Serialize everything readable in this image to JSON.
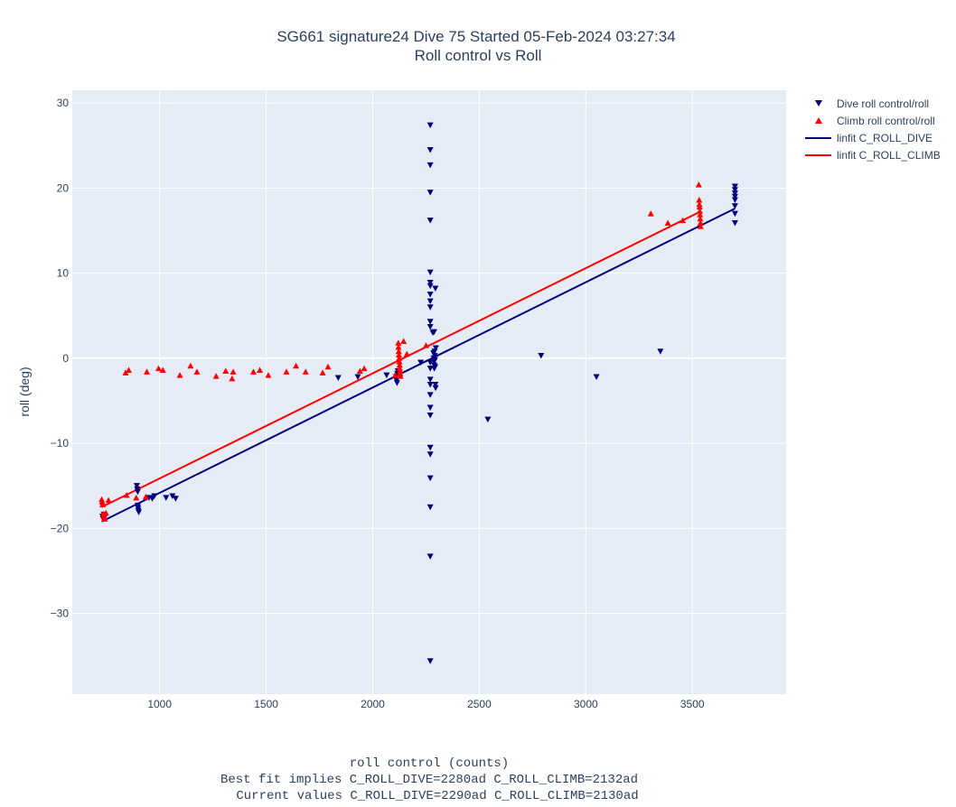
{
  "chart_data": {
    "type": "scatter",
    "title": "SG661 signature24 Dive 75 Started 05-Feb-2024 03:27:34",
    "subtitle": "Roll control vs Roll",
    "xlabel_lines": [
      "roll control (counts)",
      "Best fit implies C_ROLL_DIVE=2280ad C_ROLL_CLIMB=2132ad",
      "Current values C_ROLL_DIVE=2290ad C_ROLL_CLIMB=2130ad"
    ],
    "ylabel": "roll (deg)",
    "xlim": [
      590,
      3940
    ],
    "ylim": [
      -39.5,
      31.5
    ],
    "x_ticks": [
      1000,
      1500,
      2000,
      2500,
      3000,
      3500
    ],
    "y_ticks": [
      30,
      20,
      10,
      0,
      -10,
      -20,
      -30
    ],
    "grid": true,
    "legend_position": "top-right",
    "colors": {
      "dive": "#00007f",
      "climb": "#ff0000",
      "plot_bg": "#e5ecf6",
      "grid": "#ffffff",
      "text": "#2a3f5f"
    },
    "series": [
      {
        "name": "Dive roll control/roll",
        "kind": "markers",
        "marker": "triangle-down",
        "color": "#00007f",
        "points": [
          [
            732,
            -18.6
          ],
          [
            735,
            -18.9
          ],
          [
            738,
            -18.4
          ],
          [
            742,
            -18.7
          ],
          [
            893,
            -15.0
          ],
          [
            895,
            -15.4
          ],
          [
            897,
            -15.7
          ],
          [
            899,
            -17.6
          ],
          [
            900,
            -17.9
          ],
          [
            902,
            -18.1
          ],
          [
            898,
            -17.3
          ],
          [
            950,
            -16.4
          ],
          [
            965,
            -16.5
          ],
          [
            975,
            -16.2
          ],
          [
            1030,
            -16.4
          ],
          [
            1060,
            -16.2
          ],
          [
            1075,
            -16.5
          ],
          [
            1838,
            -2.3
          ],
          [
            1930,
            -2.2
          ],
          [
            2065,
            -2.0
          ],
          [
            2110,
            -2.2
          ],
          [
            2112,
            -2.6
          ],
          [
            2114,
            -2.9
          ],
          [
            2116,
            -1.8
          ],
          [
            2118,
            -1.5
          ],
          [
            2225,
            -0.5
          ],
          [
            2270,
            27.4
          ],
          [
            2270,
            24.5
          ],
          [
            2270,
            22.7
          ],
          [
            2270,
            19.5
          ],
          [
            2270,
            16.2
          ],
          [
            2270,
            10.1
          ],
          [
            2270,
            8.9
          ],
          [
            2270,
            8.5
          ],
          [
            2270,
            7.5
          ],
          [
            2270,
            6.7
          ],
          [
            2270,
            6.0
          ],
          [
            2270,
            4.3
          ],
          [
            2270,
            3.7
          ],
          [
            2270,
            -0.5
          ],
          [
            2270,
            -1.2
          ],
          [
            2270,
            -2.5
          ],
          [
            2270,
            -3.1
          ],
          [
            2270,
            -4.3
          ],
          [
            2270,
            -5.8
          ],
          [
            2270,
            -6.7
          ],
          [
            2270,
            -10.5
          ],
          [
            2270,
            -11.3
          ],
          [
            2270,
            -14.1
          ],
          [
            2270,
            -17.5
          ],
          [
            2270,
            -23.3
          ],
          [
            2270,
            -35.6
          ],
          [
            2282,
            3.0
          ],
          [
            2285,
            0.6
          ],
          [
            2286,
            0.0
          ],
          [
            2287,
            -0.3
          ],
          [
            2288,
            -0.8
          ],
          [
            2289,
            -1.2
          ],
          [
            2290,
            0.8
          ],
          [
            2291,
            0.3
          ],
          [
            2292,
            -0.2
          ],
          [
            2293,
            -1.0
          ],
          [
            2294,
            -3.1
          ],
          [
            2295,
            -3.5
          ],
          [
            2296,
            1.2
          ],
          [
            2294,
            8.2
          ],
          [
            2288,
            3.1
          ],
          [
            2540,
            -7.2
          ],
          [
            2790,
            0.3
          ],
          [
            3050,
            -2.2
          ],
          [
            3350,
            0.8
          ],
          [
            3700,
            20.2
          ],
          [
            3700,
            19.8
          ],
          [
            3700,
            19.4
          ],
          [
            3700,
            19.0
          ],
          [
            3700,
            18.6
          ],
          [
            3700,
            17.9
          ],
          [
            3700,
            17.0
          ],
          [
            3700,
            15.9
          ]
        ]
      },
      {
        "name": "Climb roll control/roll",
        "kind": "markers",
        "marker": "triangle-up",
        "color": "#ff0000",
        "points": [
          [
            728,
            -16.6
          ],
          [
            730,
            -16.9
          ],
          [
            732,
            -17.2
          ],
          [
            735,
            -18.3
          ],
          [
            738,
            -18.6
          ],
          [
            742,
            -18.9
          ],
          [
            748,
            -18.2
          ],
          [
            760,
            -16.7
          ],
          [
            845,
            -16.1
          ],
          [
            890,
            -16.4
          ],
          [
            935,
            -16.3
          ],
          [
            840,
            -1.7
          ],
          [
            855,
            -1.4
          ],
          [
            940,
            -1.6
          ],
          [
            995,
            -1.2
          ],
          [
            1015,
            -1.4
          ],
          [
            1095,
            -2.0
          ],
          [
            1145,
            -0.9
          ],
          [
            1175,
            -1.6
          ],
          [
            1265,
            -2.1
          ],
          [
            1310,
            -1.5
          ],
          [
            1340,
            -2.4
          ],
          [
            1345,
            -1.6
          ],
          [
            1440,
            -1.6
          ],
          [
            1470,
            -1.4
          ],
          [
            1510,
            -2.0
          ],
          [
            1595,
            -1.6
          ],
          [
            1640,
            -0.9
          ],
          [
            1685,
            -1.6
          ],
          [
            1765,
            -1.7
          ],
          [
            1790,
            -1.0
          ],
          [
            1940,
            -1.5
          ],
          [
            1960,
            -1.2
          ],
          [
            2105,
            -2.0
          ],
          [
            2120,
            1.8
          ],
          [
            2121,
            1.3
          ],
          [
            2122,
            0.8
          ],
          [
            2123,
            0.4
          ],
          [
            2124,
            0.0
          ],
          [
            2125,
            -0.4
          ],
          [
            2126,
            -0.8
          ],
          [
            2127,
            -1.2
          ],
          [
            2128,
            -1.5
          ],
          [
            2129,
            -1.8
          ],
          [
            2130,
            -2.1
          ],
          [
            2145,
            2.0
          ],
          [
            2160,
            0.5
          ],
          [
            2250,
            1.5
          ],
          [
            3305,
            17.0
          ],
          [
            3385,
            15.9
          ],
          [
            3455,
            16.2
          ],
          [
            3530,
            20.4
          ],
          [
            3532,
            18.6
          ],
          [
            3533,
            18.1
          ],
          [
            3534,
            17.8
          ],
          [
            3535,
            17.3
          ],
          [
            3536,
            16.9
          ],
          [
            3537,
            16.4
          ],
          [
            3538,
            15.9
          ],
          [
            3539,
            15.5
          ]
        ]
      },
      {
        "name": "linfit C_ROLL_DIVE",
        "kind": "line",
        "color": "#00007f",
        "x": [
          728,
          3700
        ],
        "y": [
          -19.2,
          17.6
        ]
      },
      {
        "name": "linfit C_ROLL_CLIMB",
        "kind": "line",
        "color": "#ff0000",
        "x": [
          728,
          3535
        ],
        "y": [
          -17.5,
          17.2
        ]
      }
    ]
  }
}
